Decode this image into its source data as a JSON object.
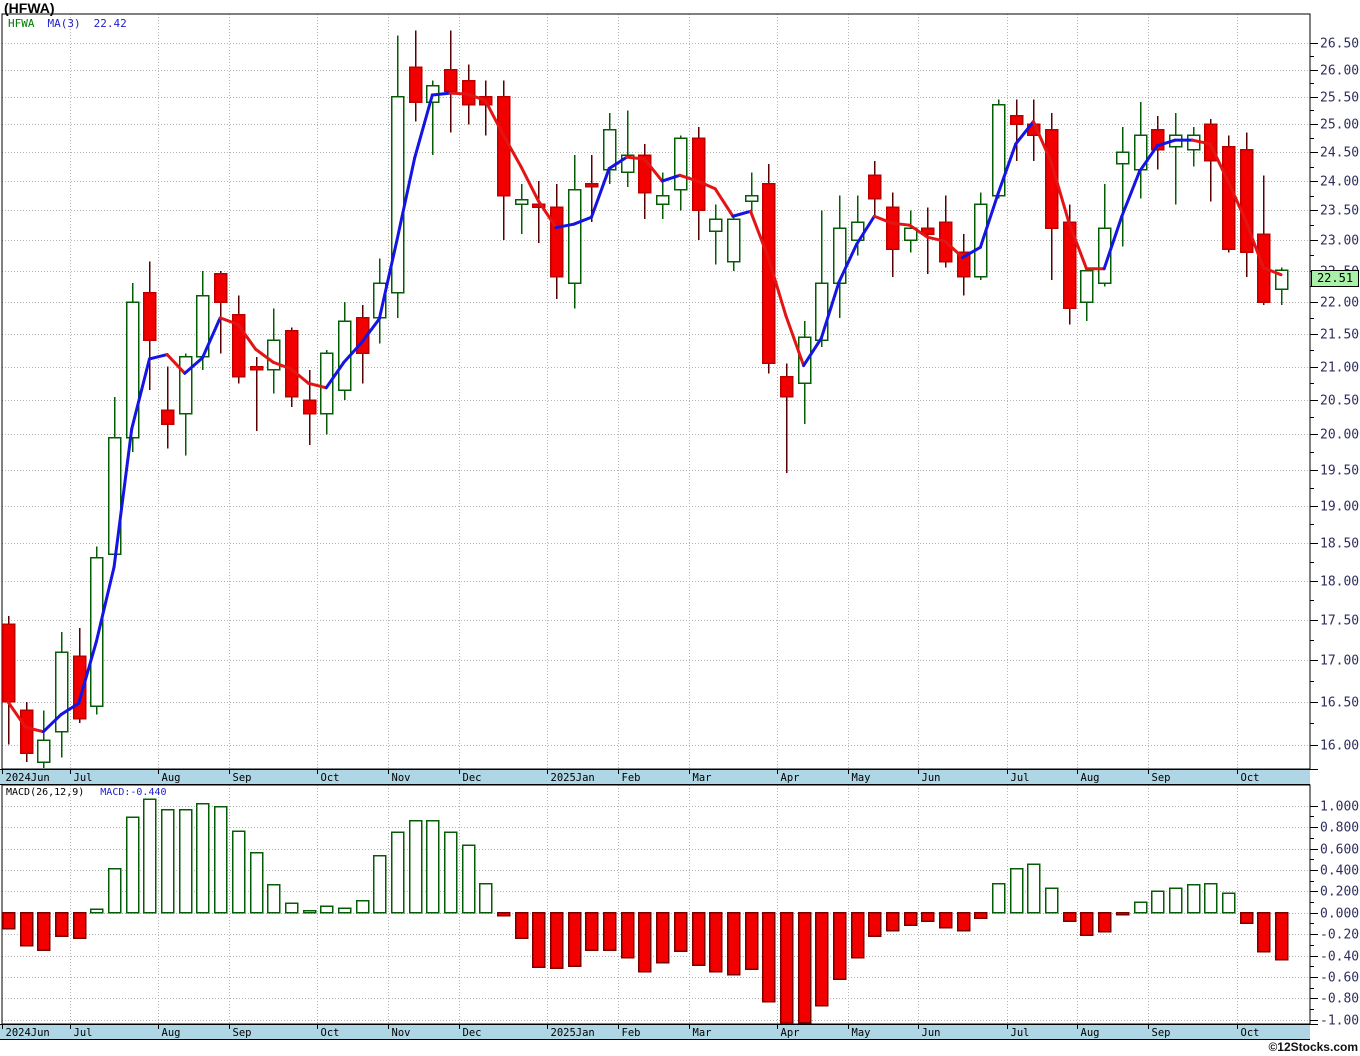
{
  "title": "(HFWA)",
  "legend": {
    "symbol": "HFWA",
    "ma_label": "MA(3)",
    "ma_value": "22.42"
  },
  "macd_header": {
    "label": "MACD(26,12,9)",
    "value_label": "MACD:-0.440"
  },
  "price_label": "22.51",
  "copyright": "©12Stocks.com",
  "colors": {
    "up_border": "#045c04",
    "up_fill": "#ffffff",
    "up_wick": "#045c04",
    "down_fill": "#f20000",
    "down_border": "#bb0000",
    "down_wick": "#5a0000",
    "ma_up": "#1414e4",
    "ma_down": "#e41414",
    "grid": "#b4b4b4",
    "axis_text": "#2e2e5e",
    "month_text": "#000000",
    "month_bar_bg": "#aed6e4",
    "border": "#000000",
    "price_tag_bg": "#a9f1a9",
    "macd_pos_border": "#045c04",
    "macd_pos_fill": "#ffffff",
    "macd_neg_fill": "#f20000",
    "macd_neg_border": "#7a0000"
  },
  "chart_data": {
    "type": "candlestick+macd-histogram",
    "symbol": "HFWA",
    "interval": "weekly",
    "ma_period": 3,
    "ma_last_value": 22.42,
    "last_price": 22.51,
    "macd_params": [
      26,
      12,
      9
    ],
    "macd_last_value": -0.44,
    "price_axis": {
      "min": 16.0,
      "max": 26.5,
      "step": 0.5,
      "scale": "log",
      "grid": true
    },
    "macd_axis": {
      "min": -1.0,
      "max": 1.0,
      "step": 0.2,
      "grid": true
    },
    "months": [
      {
        "label": "2024Jun",
        "i": 0
      },
      {
        "label": "Jul",
        "i": 4
      },
      {
        "label": "Aug",
        "i": 9
      },
      {
        "label": "Sep",
        "i": 13
      },
      {
        "label": "Oct",
        "i": 18
      },
      {
        "label": "Nov",
        "i": 22
      },
      {
        "label": "Dec",
        "i": 26
      },
      {
        "label": "2025Jan",
        "i": 31
      },
      {
        "label": "Feb",
        "i": 35
      },
      {
        "label": "Mar",
        "i": 39
      },
      {
        "label": "Apr",
        "i": 44
      },
      {
        "label": "May",
        "i": 48
      },
      {
        "label": "Jun",
        "i": 52
      },
      {
        "label": "Jul",
        "i": 57
      },
      {
        "label": "Aug",
        "i": 61
      },
      {
        "label": "Sep",
        "i": 65
      },
      {
        "label": "Oct",
        "i": 70
      }
    ],
    "candles_format": [
      "open",
      "high",
      "low",
      "close"
    ],
    "candles": [
      [
        17.45,
        17.55,
        16.0,
        16.5
      ],
      [
        16.4,
        16.5,
        15.8,
        15.9
      ],
      [
        15.8,
        16.4,
        15.7,
        16.05
      ],
      [
        16.15,
        17.35,
        15.85,
        17.1
      ],
      [
        17.05,
        17.4,
        16.25,
        16.3
      ],
      [
        16.45,
        18.45,
        16.35,
        18.3
      ],
      [
        18.35,
        20.55,
        18.25,
        19.95
      ],
      [
        19.95,
        22.3,
        19.75,
        22.0
      ],
      [
        22.15,
        22.65,
        20.65,
        21.4
      ],
      [
        20.35,
        21.0,
        19.8,
        20.15
      ],
      [
        20.3,
        21.2,
        19.7,
        21.15
      ],
      [
        21.15,
        22.5,
        20.95,
        22.1
      ],
      [
        22.45,
        22.5,
        21.2,
        22.0
      ],
      [
        21.8,
        22.1,
        20.75,
        20.85
      ],
      [
        21.0,
        21.15,
        20.05,
        20.95
      ],
      [
        20.95,
        21.9,
        20.6,
        21.4
      ],
      [
        21.55,
        21.6,
        20.4,
        20.55
      ],
      [
        20.5,
        20.95,
        19.85,
        20.3
      ],
      [
        20.3,
        21.25,
        20.0,
        21.2
      ],
      [
        20.65,
        22.0,
        20.5,
        21.7
      ],
      [
        21.75,
        21.95,
        20.75,
        21.2
      ],
      [
        21.75,
        22.7,
        21.35,
        22.3
      ],
      [
        22.15,
        26.65,
        21.75,
        25.5
      ],
      [
        26.05,
        26.75,
        25.05,
        25.4
      ],
      [
        25.4,
        25.8,
        24.45,
        25.7
      ],
      [
        26.0,
        26.75,
        24.85,
        25.6
      ],
      [
        25.8,
        26.1,
        25.0,
        25.35
      ],
      [
        25.5,
        25.8,
        24.8,
        25.35
      ],
      [
        25.5,
        25.8,
        23.0,
        23.75
      ],
      [
        23.6,
        23.95,
        23.1,
        23.68
      ],
      [
        23.6,
        24.0,
        22.95,
        23.55
      ],
      [
        23.55,
        23.95,
        22.05,
        22.4
      ],
      [
        22.3,
        24.45,
        21.9,
        23.85
      ],
      [
        23.95,
        24.45,
        23.3,
        23.9
      ],
      [
        24.2,
        25.2,
        23.95,
        24.9
      ],
      [
        24.15,
        25.25,
        23.9,
        24.45
      ],
      [
        24.45,
        24.65,
        23.35,
        23.8
      ],
      [
        23.6,
        24.15,
        23.35,
        23.75
      ],
      [
        23.85,
        24.8,
        23.5,
        24.75
      ],
      [
        24.75,
        24.95,
        23.0,
        23.5
      ],
      [
        23.15,
        23.6,
        22.6,
        23.35
      ],
      [
        22.65,
        23.4,
        22.5,
        23.35
      ],
      [
        23.65,
        24.15,
        23.4,
        23.75
      ],
      [
        23.95,
        24.3,
        20.9,
        21.05
      ],
      [
        20.85,
        21.05,
        19.45,
        20.55
      ],
      [
        20.75,
        21.7,
        20.15,
        21.45
      ],
      [
        21.4,
        23.5,
        21.3,
        22.3
      ],
      [
        22.3,
        23.75,
        21.75,
        23.2
      ],
      [
        23.0,
        23.75,
        22.75,
        23.3
      ],
      [
        24.1,
        24.35,
        23.4,
        23.7
      ],
      [
        23.55,
        23.8,
        22.4,
        22.85
      ],
      [
        23.0,
        23.5,
        22.8,
        23.2
      ],
      [
        23.2,
        23.55,
        22.45,
        23.1
      ],
      [
        23.3,
        23.75,
        22.55,
        22.65
      ],
      [
        22.8,
        23.1,
        22.1,
        22.4
      ],
      [
        22.4,
        23.8,
        22.35,
        23.6
      ],
      [
        23.75,
        25.45,
        23.7,
        25.35
      ],
      [
        25.15,
        25.45,
        24.35,
        25.0
      ],
      [
        25.0,
        25.45,
        24.35,
        24.8
      ],
      [
        24.9,
        25.2,
        22.35,
        23.2
      ],
      [
        23.3,
        23.6,
        21.65,
        21.9
      ],
      [
        22.0,
        22.55,
        21.7,
        22.5
      ],
      [
        22.3,
        23.95,
        22.25,
        23.2
      ],
      [
        24.3,
        24.95,
        22.9,
        24.5
      ],
      [
        24.2,
        25.4,
        23.7,
        24.8
      ],
      [
        24.9,
        25.15,
        24.2,
        24.55
      ],
      [
        24.6,
        25.2,
        23.6,
        24.8
      ],
      [
        24.55,
        24.95,
        24.25,
        24.8
      ],
      [
        25.0,
        25.1,
        23.65,
        24.35
      ],
      [
        24.6,
        24.8,
        22.8,
        22.85
      ],
      [
        24.55,
        24.85,
        22.4,
        22.8
      ],
      [
        23.1,
        24.1,
        21.95,
        22.0
      ],
      [
        22.2,
        22.55,
        21.95,
        22.51
      ]
    ],
    "macd": [
      -0.15,
      -0.31,
      -0.35,
      -0.22,
      -0.24,
      0.03,
      0.41,
      0.89,
      1.06,
      0.96,
      0.96,
      1.02,
      0.99,
      0.76,
      0.56,
      0.26,
      0.09,
      0.02,
      0.06,
      0.04,
      0.11,
      0.53,
      0.75,
      0.86,
      0.86,
      0.75,
      0.63,
      0.27,
      -0.03,
      -0.24,
      -0.51,
      -0.52,
      -0.5,
      -0.35,
      -0.35,
      -0.42,
      -0.55,
      -0.47,
      -0.36,
      -0.49,
      -0.55,
      -0.58,
      -0.53,
      -0.83,
      -1.04,
      -1.03,
      -0.87,
      -0.62,
      -0.42,
      -0.22,
      -0.17,
      -0.115,
      -0.08,
      -0.14,
      -0.17,
      -0.05,
      0.27,
      0.41,
      0.455,
      0.23,
      -0.08,
      -0.21,
      -0.18,
      -0.02,
      0.1,
      0.2,
      0.23,
      0.26,
      0.27,
      0.18,
      -0.1,
      -0.365,
      -0.44
    ]
  }
}
